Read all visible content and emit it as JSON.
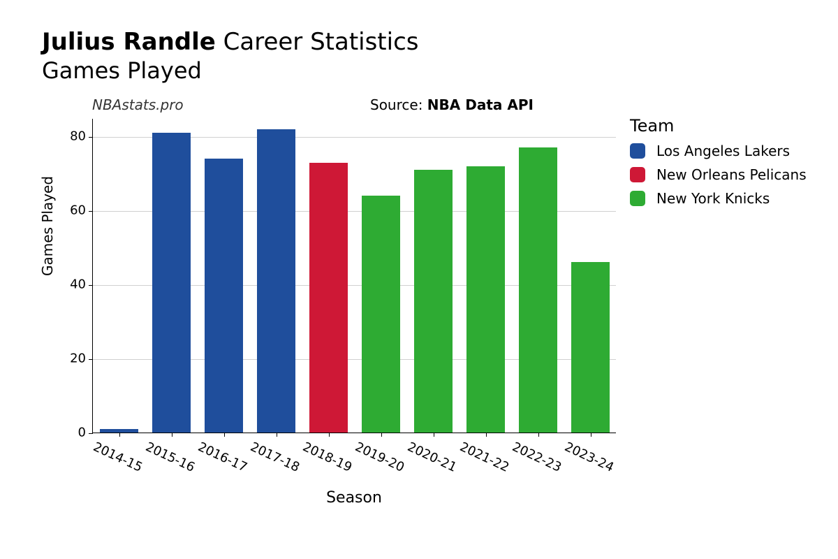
{
  "title": {
    "player_name": "Julius Randle",
    "suffix": "Career Statistics",
    "subtitle": "Games Played"
  },
  "meta": {
    "watermark": "NBAstats.pro",
    "source_prefix": "Source: ",
    "source_name": "NBA Data API"
  },
  "chart": {
    "type": "bar",
    "ylabel": "Games Played",
    "xlabel": "Season",
    "ylim": [
      0,
      85
    ],
    "ytick_step": 20,
    "yticks": [
      0,
      20,
      40,
      60,
      80
    ],
    "background_color": "#ffffff",
    "grid_color": "#d0d0d0",
    "axis_color": "#000000",
    "bar_width_ratio": 0.74,
    "label_fontsize": 20,
    "tick_fontsize": 18,
    "xtick_rotation_deg": 25,
    "seasons": [
      "2014-15",
      "2015-16",
      "2016-17",
      "2017-18",
      "2018-19",
      "2019-20",
      "2020-21",
      "2021-22",
      "2022-23",
      "2023-24"
    ],
    "values": [
      1,
      81,
      74,
      82,
      73,
      64,
      71,
      72,
      77,
      46
    ],
    "bar_colors": [
      "#1f4e9c",
      "#1f4e9c",
      "#1f4e9c",
      "#1f4e9c",
      "#ce1836",
      "#2eab33",
      "#2eab33",
      "#2eab33",
      "#2eab33",
      "#2eab33"
    ]
  },
  "legend": {
    "title": "Team",
    "title_fontsize": 24,
    "item_fontsize": 20,
    "items": [
      {
        "label": "Los Angeles Lakers",
        "color": "#1f4e9c"
      },
      {
        "label": "New Orleans Pelicans",
        "color": "#ce1836"
      },
      {
        "label": "New York Knicks",
        "color": "#2eab33"
      }
    ]
  }
}
